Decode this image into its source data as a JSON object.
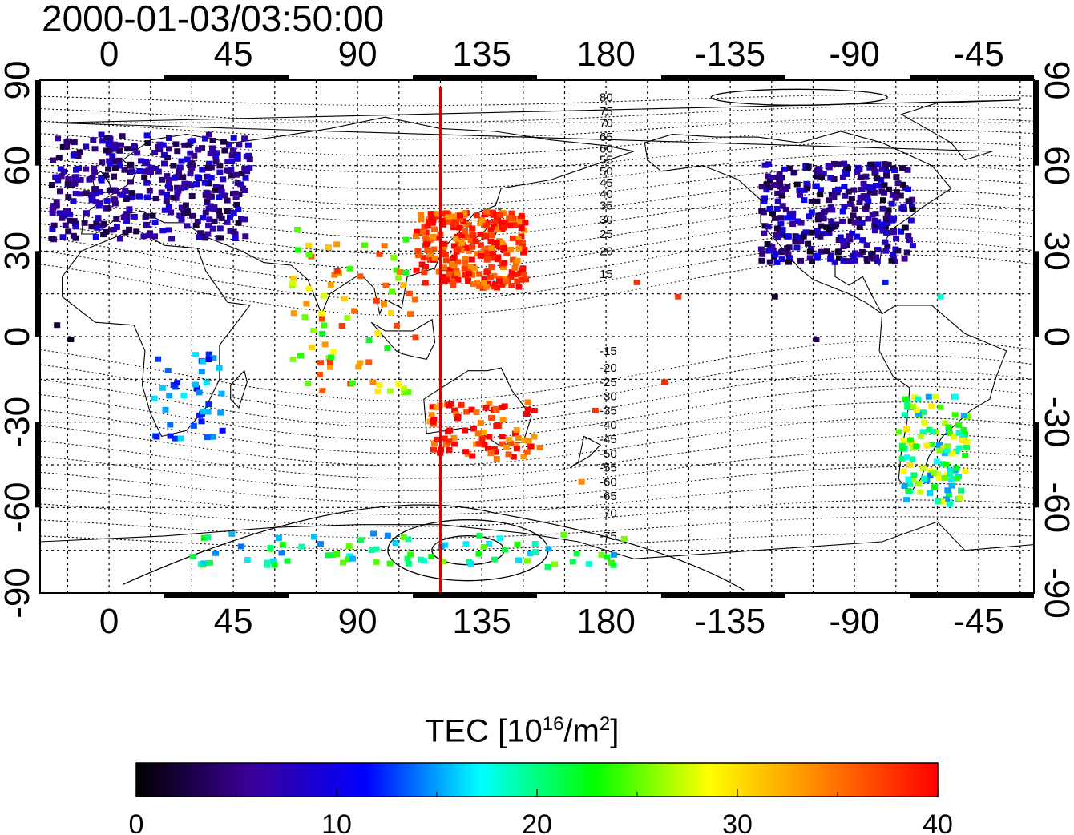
{
  "title": "2000-01-03/03:50:00",
  "map": {
    "lon_ticks": [
      "0",
      "45",
      "90",
      "135",
      "180",
      "-135",
      "-90",
      "-45"
    ],
    "lat_ticks_left": [
      "90",
      "60",
      "30",
      "0",
      "-30",
      "-60",
      "-90"
    ],
    "lat_ticks_right": [
      "90",
      "60",
      "30",
      "0",
      "-30",
      "-60",
      "-90"
    ],
    "contour_labels": [
      "80",
      "75",
      "70",
      "65",
      "60",
      "55",
      "50",
      "45",
      "40",
      "35",
      "30",
      "25",
      "20",
      "15",
      "-15",
      "-20",
      "-25",
      "-30",
      "-35",
      "-40",
      "-45",
      "-50",
      "-55",
      "-60",
      "-65",
      "-70",
      "-75"
    ],
    "marker_line_color": "#d00000",
    "tec_clusters": [
      {
        "region": "europe",
        "tec": 6
      },
      {
        "region": "north-america",
        "tec": 6
      },
      {
        "region": "japan-china",
        "tec": 38
      },
      {
        "region": "australia",
        "tec": 38
      },
      {
        "region": "south-america",
        "tec": 22
      },
      {
        "region": "antarctica",
        "tec": 20
      },
      {
        "region": "southern-africa",
        "tec": 14
      },
      {
        "region": "india",
        "tec": 30
      }
    ]
  },
  "colorbar": {
    "title_main": "TEC  [10",
    "title_sup": "16",
    "title_unit": "/m",
    "title_sup2": "2",
    "title_close": "]",
    "ticks": [
      "0",
      "10",
      "20",
      "30",
      "40"
    ],
    "range": [
      0,
      40
    ],
    "stops": [
      "#000000",
      "#3b0099",
      "#0000ff",
      "#00ffff",
      "#00ff00",
      "#ffff00",
      "#ff8000",
      "#ff0000"
    ]
  }
}
